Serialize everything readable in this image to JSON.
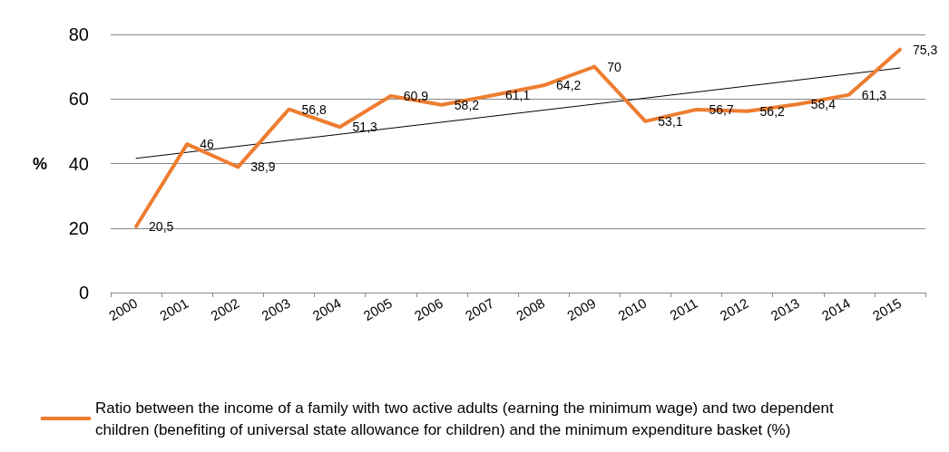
{
  "chart_data": {
    "type": "line",
    "ylabel": "%",
    "categories": [
      "2000",
      "2001",
      "2002",
      "2003",
      "2004",
      "2005",
      "2006",
      "2007",
      "2008",
      "2009",
      "2010",
      "2011",
      "2012",
      "2013",
      "2014",
      "2015"
    ],
    "series": [
      {
        "name": "Ratio between the income of a family with two active adults (earning the minimum wage) and two dependent children (benefiting of universal state allowance for children) and the minimum expenditure basket (%)",
        "color": "#ed7d31",
        "values": [
          20.5,
          46,
          38.9,
          56.8,
          51.3,
          60.9,
          58.2,
          61.1,
          64.2,
          70,
          53.1,
          56.7,
          56.2,
          58.4,
          61.3,
          75.3
        ],
        "value_labels": [
          "20,5",
          "46",
          "38,9",
          "56,8",
          "51,3",
          "60,9",
          "58,2",
          "61,1",
          "64,2",
          "70",
          "53,1",
          "56,7",
          "56,2",
          "58,4",
          "61,3",
          "75,3"
        ]
      },
      {
        "type": "line",
        "color": "#000000",
        "values": [
          41.6,
          null,
          null,
          null,
          null,
          null,
          null,
          null,
          null,
          null,
          null,
          null,
          null,
          null,
          null,
          69.6
        ]
      }
    ],
    "ylim": [
      0,
      80
    ],
    "yticks": [
      0,
      20,
      40,
      60,
      80
    ],
    "grid": "y",
    "legend": "bottom",
    "marker": "none",
    "line_style": "solid"
  }
}
